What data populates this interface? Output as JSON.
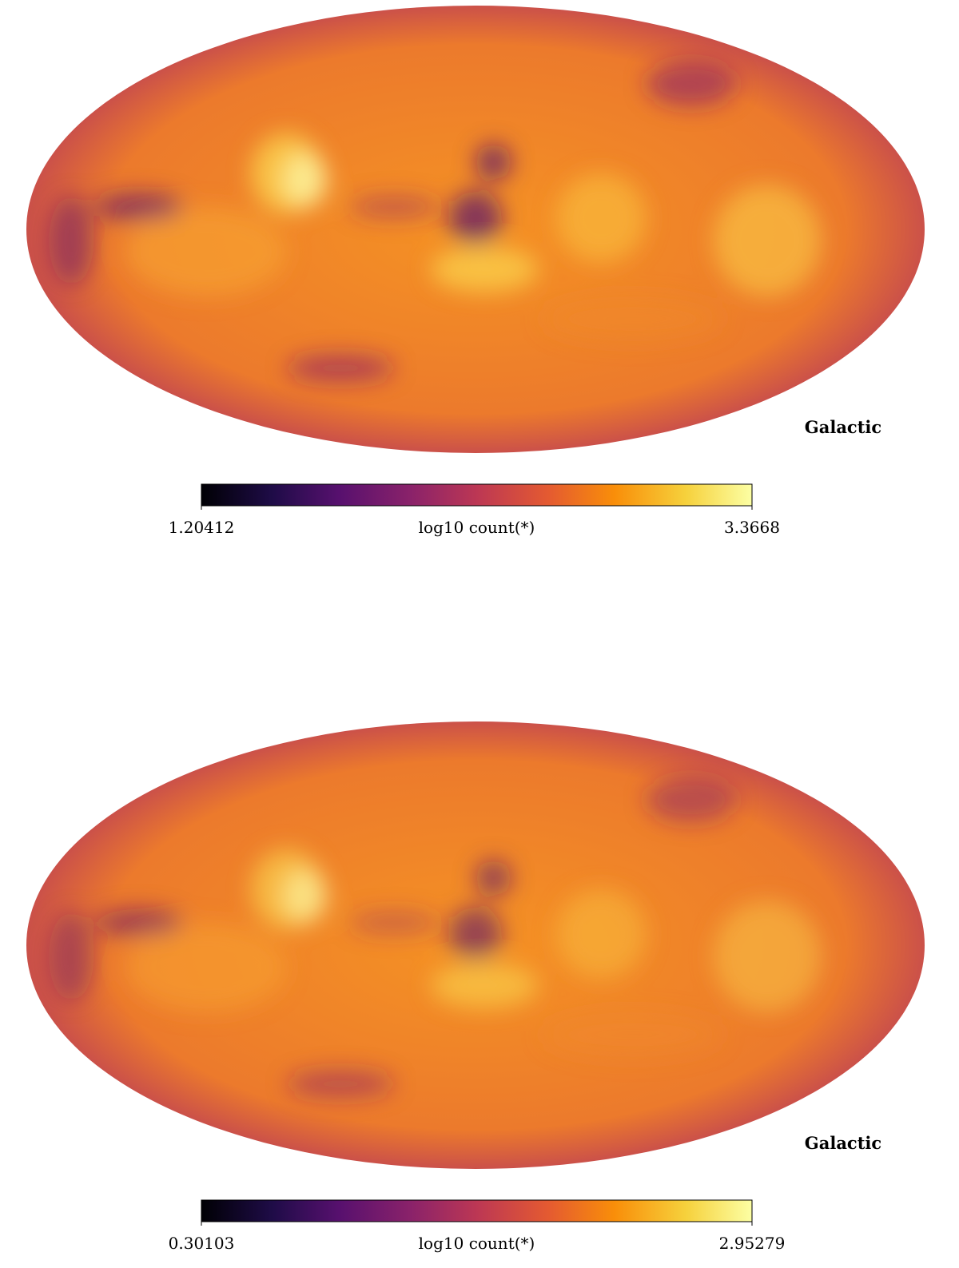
{
  "chart_data": [
    {
      "type": "mollweide",
      "coord": "Galactic",
      "colorbar": {
        "label": "log10 count(*)",
        "clim": [
          1.20412,
          3.3668
        ],
        "cmap": "inferno"
      }
    },
    {
      "type": "mollweide",
      "coord": "Galactic",
      "colorbar": {
        "label": "log10 count(*)",
        "clim": [
          0.30103,
          2.95279
        ],
        "cmap": "inferno"
      }
    }
  ]
}
